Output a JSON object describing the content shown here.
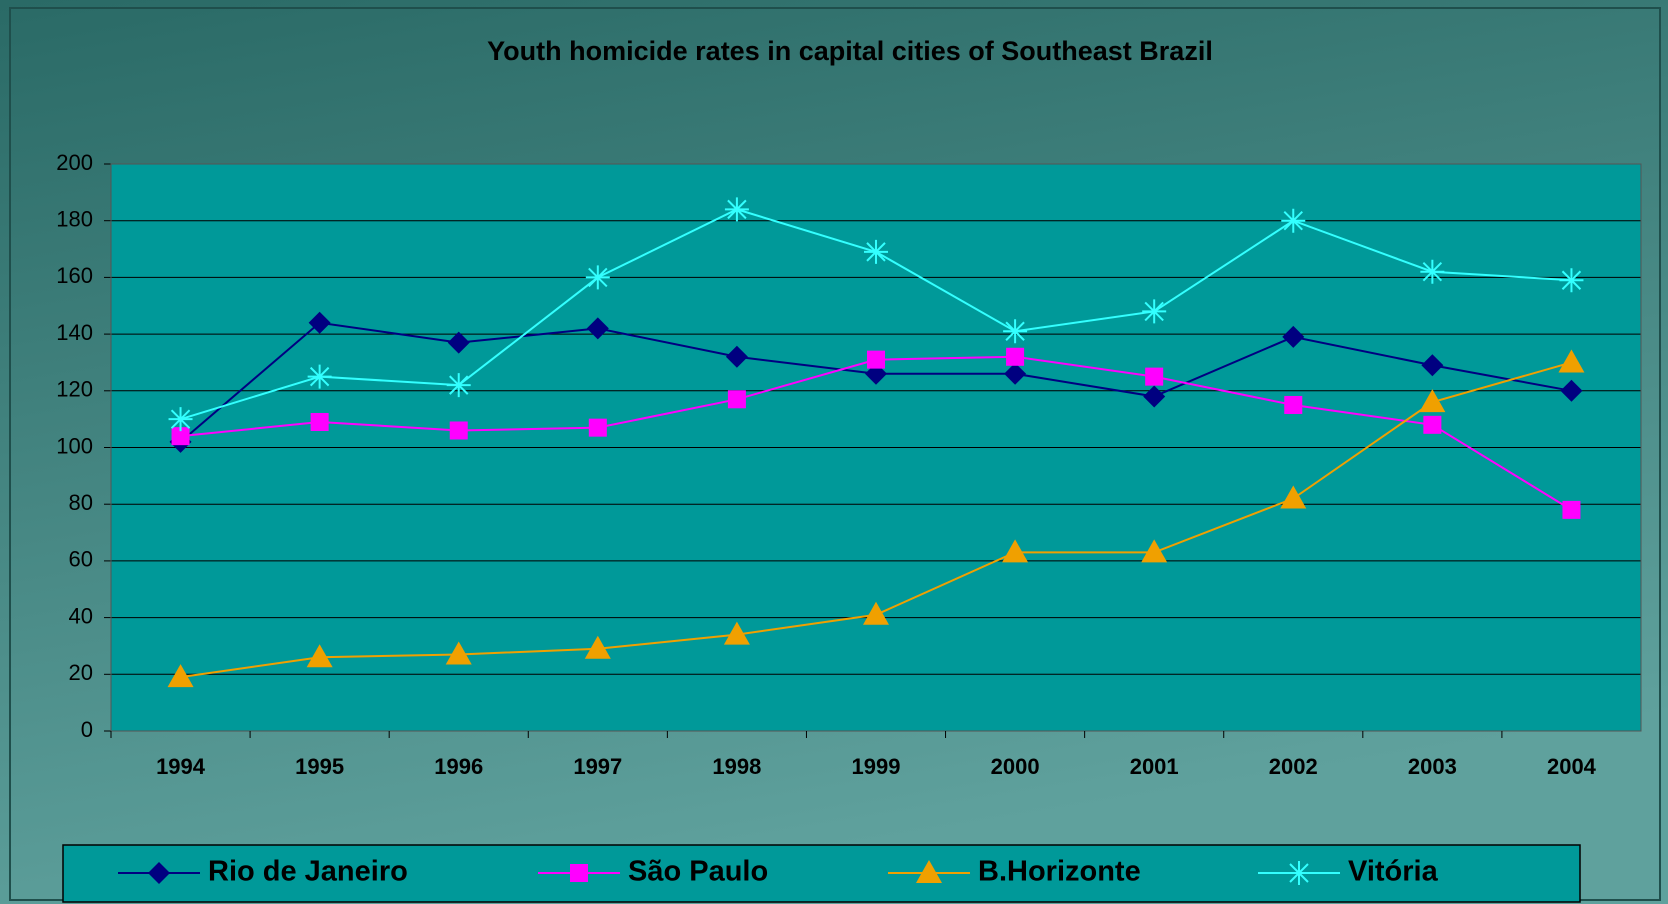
{
  "chart_data": {
    "type": "line",
    "title": "Youth homicide rates in capital cities of Southeast Brazil",
    "categories": [
      "1994",
      "1995",
      "1996",
      "1997",
      "1998",
      "1999",
      "2000",
      "2001",
      "2002",
      "2003",
      "2004"
    ],
    "series": [
      {
        "name": "Rio de Janeiro",
        "color": "#000080",
        "marker": "diamond",
        "values": [
          102,
          144,
          137,
          142,
          132,
          126,
          126,
          118,
          139,
          129,
          120
        ]
      },
      {
        "name": "São Paulo",
        "color": "#ff00ff",
        "marker": "square",
        "values": [
          104,
          109,
          106,
          107,
          117,
          131,
          132,
          125,
          115,
          108,
          78
        ]
      },
      {
        "name": "B.Horizonte",
        "color": "#f0a000",
        "marker": "triangle",
        "values": [
          19,
          26,
          27,
          29,
          34,
          41,
          63,
          63,
          82,
          116,
          130
        ]
      },
      {
        "name": "Vitória",
        "color": "#33ffff",
        "marker": "star",
        "values": [
          110,
          125,
          122,
          160,
          184,
          169,
          141,
          148,
          180,
          162,
          159
        ]
      }
    ],
    "ylim": [
      0,
      200
    ],
    "yticks": [
      0,
      20,
      40,
      60,
      80,
      100,
      120,
      140,
      160,
      180,
      200
    ],
    "grid": true
  }
}
